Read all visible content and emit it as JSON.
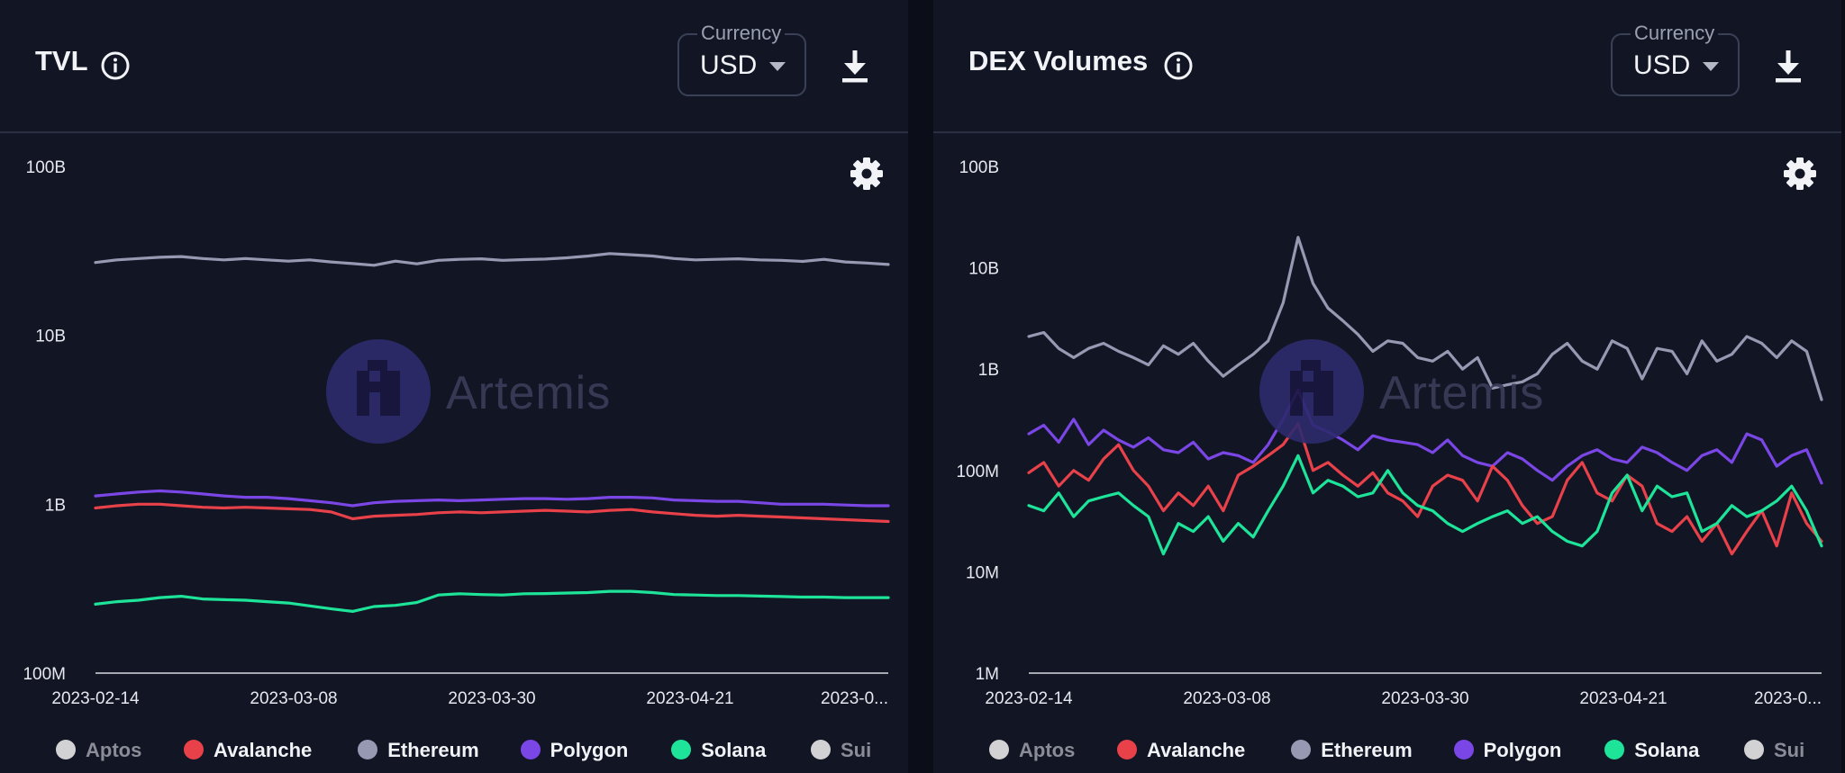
{
  "panels": [
    {
      "title": "TVL",
      "currency": {
        "label": "Currency",
        "value": "USD"
      },
      "icons": {
        "info": "info-icon",
        "caret": "chevron-down-icon",
        "download": "download-icon",
        "settings": "gear-icon"
      },
      "watermark": "Artemis"
    },
    {
      "title": "DEX Volumes",
      "currency": {
        "label": "Currency",
        "value": "USD"
      },
      "icons": {
        "info": "info-icon",
        "caret": "chevron-down-icon",
        "download": "download-icon",
        "settings": "gear-icon"
      },
      "watermark": "Artemis"
    }
  ],
  "legend": [
    {
      "name": "Aptos",
      "color": "#d2d2d4",
      "label_color": "#8a8d98"
    },
    {
      "name": "Avalanche",
      "color": "#e8414a",
      "label_color": "#f2f3f7"
    },
    {
      "name": "Ethereum",
      "color": "#9799b3",
      "label_color": "#f2f3f7"
    },
    {
      "name": "Polygon",
      "color": "#7b46e6",
      "label_color": "#f2f3f7"
    },
    {
      "name": "Solana",
      "color": "#1ee49a",
      "label_color": "#f2f3f7"
    },
    {
      "name": "Sui",
      "color": "#d2d2d4",
      "label_color": "#8a8d98"
    }
  ],
  "chart_data": [
    {
      "type": "line",
      "title": "TVL",
      "y_scale": "log",
      "ylim": [
        100000000,
        100000000000
      ],
      "y_ticks": [
        "100M",
        "1B",
        "10B",
        "100B"
      ],
      "x_ticks": [
        "2023-02-14",
        "2023-03-08",
        "2023-03-30",
        "2023-04-21",
        "2023-0..."
      ],
      "x_range": [
        "2023-02-14",
        "2023-05-13"
      ],
      "grid": false,
      "legend_position": "bottom",
      "series": [
        {
          "name": "Ethereum",
          "color": "#9799b3",
          "values": [
            27000000000.0,
            28000000000.0,
            28500000000.0,
            29000000000.0,
            29300000000.0,
            28500000000.0,
            28000000000.0,
            28500000000.0,
            28000000000.0,
            27500000000.0,
            28000000000.0,
            27200000000.0,
            26600000000.0,
            26000000000.0,
            27500000000.0,
            26500000000.0,
            27800000000.0,
            28200000000.0,
            28400000000.0,
            27800000000.0,
            28100000000.0,
            28300000000.0,
            28800000000.0,
            29500000000.0,
            30500000000.0,
            30000000000.0,
            29500000000.0,
            28500000000.0,
            28000000000.0,
            28200000000.0,
            28400000000.0,
            28000000000.0,
            27800000000.0,
            27400000000.0,
            28200000000.0,
            27200000000.0,
            26800000000.0,
            26300000000.0
          ]
        },
        {
          "name": "Polygon",
          "color": "#7b46e6",
          "values": [
            1120000000.0,
            1150000000.0,
            1180000000.0,
            1200000000.0,
            1180000000.0,
            1150000000.0,
            1120000000.0,
            1100000000.0,
            1100000000.0,
            1080000000.0,
            1050000000.0,
            1020000000.0,
            980000000.0,
            1020000000.0,
            1040000000.0,
            1050000000.0,
            1060000000.0,
            1050000000.0,
            1060000000.0,
            1070000000.0,
            1080000000.0,
            1080000000.0,
            1070000000.0,
            1080000000.0,
            1100000000.0,
            1100000000.0,
            1090000000.0,
            1060000000.0,
            1050000000.0,
            1040000000.0,
            1040000000.0,
            1020000000.0,
            1000000000.0,
            1000000000.0,
            1000000000.0,
            990000000.0,
            980000000.0,
            980000000.0
          ]
        },
        {
          "name": "Avalanche",
          "color": "#e8414a",
          "values": [
            950000000.0,
            980000000.0,
            1000000000.0,
            1000000000.0,
            980000000.0,
            960000000.0,
            950000000.0,
            960000000.0,
            950000000.0,
            940000000.0,
            930000000.0,
            900000000.0,
            820000000.0,
            850000000.0,
            860000000.0,
            870000000.0,
            890000000.0,
            900000000.0,
            890000000.0,
            900000000.0,
            910000000.0,
            920000000.0,
            910000000.0,
            900000000.0,
            920000000.0,
            930000000.0,
            900000000.0,
            880000000.0,
            860000000.0,
            850000000.0,
            860000000.0,
            850000000.0,
            840000000.0,
            830000000.0,
            820000000.0,
            810000000.0,
            800000000.0,
            790000000.0
          ]
        },
        {
          "name": "Solana",
          "color": "#1ee49a",
          "values": [
            256000000.0,
            265000000.0,
            270000000.0,
            280000000.0,
            285000000.0,
            275000000.0,
            272000000.0,
            270000000.0,
            265000000.0,
            260000000.0,
            250000000.0,
            240000000.0,
            232000000.0,
            248000000.0,
            252000000.0,
            262000000.0,
            290000000.0,
            295000000.0,
            292000000.0,
            290000000.0,
            295000000.0,
            296000000.0,
            298000000.0,
            300000000.0,
            305000000.0,
            305000000.0,
            300000000.0,
            292000000.0,
            290000000.0,
            288000000.0,
            288000000.0,
            286000000.0,
            284000000.0,
            282000000.0,
            282000000.0,
            280000000.0,
            280000000.0,
            280000000.0
          ]
        }
      ]
    },
    {
      "type": "line",
      "title": "DEX Volumes",
      "y_scale": "log",
      "ylim": [
        1000000,
        100000000000
      ],
      "y_ticks": [
        "1M",
        "10M",
        "100M",
        "1B",
        "10B",
        "100B"
      ],
      "x_ticks": [
        "2023-02-14",
        "2023-03-08",
        "2023-03-30",
        "2023-04-21",
        "2023-0..."
      ],
      "x_range": [
        "2023-02-14",
        "2023-05-13"
      ],
      "grid": false,
      "legend_position": "bottom",
      "series": [
        {
          "name": "Ethereum",
          "color": "#9799b3",
          "values": [
            2100000000.0,
            2300000000.0,
            1600000000.0,
            1300000000.0,
            1600000000.0,
            1800000000.0,
            1500000000.0,
            1300000000.0,
            1100000000.0,
            1700000000.0,
            1400000000.0,
            1800000000.0,
            1200000000.0,
            850000000.0,
            1100000000.0,
            1400000000.0,
            1900000000.0,
            4500000000.0,
            20000000000.0,
            7000000000.0,
            4000000000.0,
            3000000000.0,
            2200000000.0,
            1500000000.0,
            1900000000.0,
            1800000000.0,
            1300000000.0,
            1200000000.0,
            1500000000.0,
            1000000000.0,
            1300000000.0,
            650000000.0,
            700000000.0,
            750000000.0,
            900000000.0,
            1400000000.0,
            1800000000.0,
            1200000000.0,
            1000000000.0,
            1900000000.0,
            1600000000.0,
            800000000.0,
            1600000000.0,
            1500000000.0,
            900000000.0,
            1900000000.0,
            1200000000.0,
            1400000000.0,
            2100000000.0,
            1800000000.0,
            1300000000.0,
            1900000000.0,
            1500000000.0,
            500000000.0
          ]
        },
        {
          "name": "Polygon",
          "color": "#7b46e6",
          "values": [
            230000000.0,
            280000000.0,
            190000000.0,
            320000000.0,
            180000000.0,
            250000000.0,
            200000000.0,
            170000000.0,
            210000000.0,
            160000000.0,
            150000000.0,
            190000000.0,
            130000000.0,
            150000000.0,
            140000000.0,
            120000000.0,
            180000000.0,
            320000000.0,
            620000000.0,
            280000000.0,
            240000000.0,
            200000000.0,
            160000000.0,
            220000000.0,
            200000000.0,
            190000000.0,
            180000000.0,
            150000000.0,
            200000000.0,
            140000000.0,
            120000000.0,
            110000000.0,
            150000000.0,
            130000000.0,
            100000000.0,
            80000000.0,
            110000000.0,
            140000000.0,
            160000000.0,
            130000000.0,
            120000000.0,
            170000000.0,
            150000000.0,
            120000000.0,
            100000000.0,
            140000000.0,
            160000000.0,
            120000000.0,
            230000000.0,
            200000000.0,
            110000000.0,
            140000000.0,
            160000000.0,
            75000000.0
          ]
        },
        {
          "name": "Avalanche",
          "color": "#e8414a",
          "values": [
            95000000.0,
            120000000.0,
            70000000.0,
            100000000.0,
            80000000.0,
            130000000.0,
            180000000.0,
            100000000.0,
            70000000.0,
            40000000.0,
            60000000.0,
            45000000.0,
            70000000.0,
            40000000.0,
            90000000.0,
            110000000.0,
            140000000.0,
            180000000.0,
            290000000.0,
            100000000.0,
            120000000.0,
            90000000.0,
            70000000.0,
            95000000.0,
            60000000.0,
            50000000.0,
            35000000.0,
            70000000.0,
            90000000.0,
            80000000.0,
            50000000.0,
            110000000.0,
            80000000.0,
            45000000.0,
            30000000.0,
            35000000.0,
            80000000.0,
            120000000.0,
            60000000.0,
            50000000.0,
            90000000.0,
            70000000.0,
            30000000.0,
            25000000.0,
            35000000.0,
            20000000.0,
            30000000.0,
            15000000.0,
            25000000.0,
            40000000.0,
            18000000.0,
            60000000.0,
            30000000.0,
            20000000.0
          ]
        },
        {
          "name": "Solana",
          "color": "#1ee49a",
          "values": [
            45000000.0,
            40000000.0,
            60000000.0,
            35000000.0,
            50000000.0,
            55000000.0,
            60000000.0,
            45000000.0,
            35000000.0,
            15000000.0,
            30000000.0,
            25000000.0,
            35000000.0,
            20000000.0,
            30000000.0,
            22000000.0,
            40000000.0,
            70000000.0,
            140000000.0,
            60000000.0,
            80000000.0,
            70000000.0,
            55000000.0,
            60000000.0,
            100000000.0,
            60000000.0,
            45000000.0,
            40000000.0,
            30000000.0,
            25000000.0,
            30000000.0,
            35000000.0,
            40000000.0,
            30000000.0,
            35000000.0,
            25000000.0,
            20000000.0,
            18000000.0,
            25000000.0,
            60000000.0,
            90000000.0,
            40000000.0,
            70000000.0,
            55000000.0,
            60000000.0,
            25000000.0,
            30000000.0,
            45000000.0,
            35000000.0,
            40000000.0,
            50000000.0,
            70000000.0,
            40000000.0,
            18000000.0
          ]
        }
      ]
    }
  ]
}
